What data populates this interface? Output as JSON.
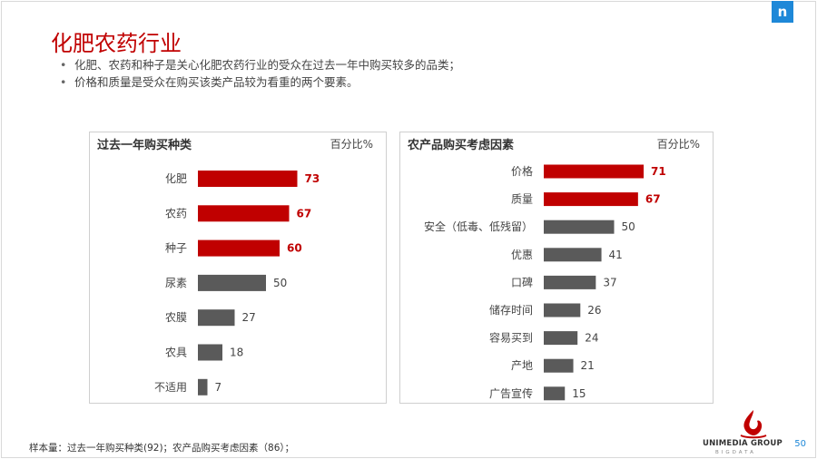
{
  "title": "化肥农药行业",
  "bullets": [
    "化肥、农药和种子是关心化肥农药行业的受众在过去一年中购买较多的品类；",
    "价格和质量是受众在购买该类产品较为看重的两个要素。"
  ],
  "logo_mark": "n",
  "colors": {
    "highlight": "#c00000",
    "normal": "#5a5a5a",
    "title": "#c00000",
    "accent": "#1e88d8"
  },
  "chart_data": [
    {
      "type": "bar",
      "orientation": "horizontal",
      "title": "过去一年购买种类",
      "unit": "百分比%",
      "categories": [
        "化肥",
        "农药",
        "种子",
        "尿素",
        "农膜",
        "农具",
        "不适用"
      ],
      "values": [
        73,
        67,
        60,
        50,
        27,
        18,
        7
      ],
      "highlighted": [
        true,
        true,
        true,
        false,
        false,
        false,
        false
      ]
    },
    {
      "type": "bar",
      "orientation": "horizontal",
      "title": "农产品购买考虑因素",
      "unit": "百分比%",
      "categories": [
        "价格",
        "质量",
        "安全（低毒、低残留）",
        "优惠",
        "口碑",
        "储存时间",
        "容易买到",
        "产地",
        "广告宣传"
      ],
      "values": [
        71,
        67,
        50,
        41,
        37,
        26,
        24,
        21,
        15
      ],
      "highlighted": [
        true,
        true,
        false,
        false,
        false,
        false,
        false,
        false,
        false
      ]
    }
  ],
  "footer": "样本量：过去一年购买种类(92)；农产品购买考虑因素（86）；",
  "brand": {
    "name": "UNIMEDIA GROUP",
    "sub": "BIGDATA"
  },
  "page_number": "50"
}
